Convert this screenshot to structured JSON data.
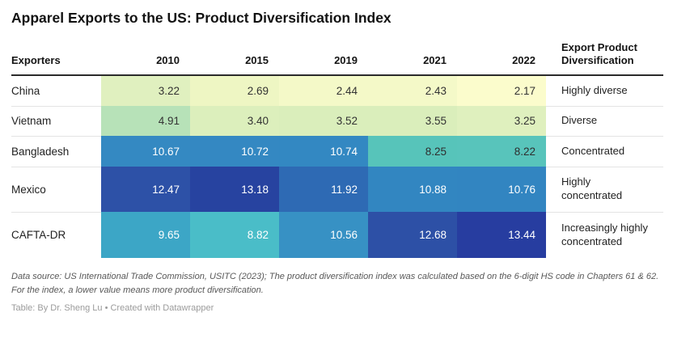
{
  "title": "Apparel Exports to the US: Product Diversification Index",
  "table": {
    "columns": [
      {
        "label": "Exporters"
      },
      {
        "label": "2010"
      },
      {
        "label": "2015"
      },
      {
        "label": "2019"
      },
      {
        "label": "2021"
      },
      {
        "label": "2022"
      },
      {
        "label": "Export Product Diversification"
      }
    ],
    "rows": [
      {
        "exporter": "China",
        "classification": "Highly diverse",
        "cells": [
          {
            "value": "3.22",
            "bg": "#e0f0bf",
            "fg": "#333333"
          },
          {
            "value": "2.69",
            "bg": "#eef6c3",
            "fg": "#333333"
          },
          {
            "value": "2.44",
            "bg": "#f4f9c8",
            "fg": "#333333"
          },
          {
            "value": "2.43",
            "bg": "#f4f9c8",
            "fg": "#333333"
          },
          {
            "value": "2.17",
            "bg": "#fbfccc",
            "fg": "#333333"
          }
        ]
      },
      {
        "exporter": "Vietnam",
        "classification": "Diverse",
        "cells": [
          {
            "value": "4.91",
            "bg": "#b7e2b8",
            "fg": "#333333"
          },
          {
            "value": "3.40",
            "bg": "#dcefbc",
            "fg": "#333333"
          },
          {
            "value": "3.52",
            "bg": "#daeebb",
            "fg": "#333333"
          },
          {
            "value": "3.55",
            "bg": "#daeebb",
            "fg": "#333333"
          },
          {
            "value": "3.25",
            "bg": "#dff0be",
            "fg": "#333333"
          }
        ]
      },
      {
        "exporter": "Bangladesh",
        "classification": "Concentrated",
        "cells": [
          {
            "value": "10.67",
            "bg": "#3489c2",
            "fg": "#ffffff"
          },
          {
            "value": "10.72",
            "bg": "#3488c2",
            "fg": "#ffffff"
          },
          {
            "value": "10.74",
            "bg": "#3388c2",
            "fg": "#ffffff"
          },
          {
            "value": "8.25",
            "bg": "#57c4ba",
            "fg": "#2e2e2e"
          },
          {
            "value": "8.22",
            "bg": "#58c4bb",
            "fg": "#2e2e2e"
          }
        ]
      },
      {
        "exporter": "Mexico",
        "classification": "Highly concentrated",
        "cells": [
          {
            "value": "12.47",
            "bg": "#2d51a7",
            "fg": "#ffffff"
          },
          {
            "value": "13.18",
            "bg": "#2743a0",
            "fg": "#ffffff"
          },
          {
            "value": "11.92",
            "bg": "#2e6ab4",
            "fg": "#ffffff"
          },
          {
            "value": "10.88",
            "bg": "#3286c1",
            "fg": "#ffffff"
          },
          {
            "value": "10.76",
            "bg": "#3285c1",
            "fg": "#ffffff"
          }
        ]
      },
      {
        "exporter": "CAFTA-DR",
        "classification": "Increasingly highly concentrated",
        "cells": [
          {
            "value": "9.65",
            "bg": "#3ca6c6",
            "fg": "#ffffff"
          },
          {
            "value": "8.82",
            "bg": "#4abdc8",
            "fg": "#ffffff"
          },
          {
            "value": "10.56",
            "bg": "#3791c4",
            "fg": "#ffffff"
          },
          {
            "value": "12.68",
            "bg": "#2d50a6",
            "fg": "#ffffff"
          },
          {
            "value": "13.44",
            "bg": "#273da0",
            "fg": "#ffffff"
          }
        ]
      }
    ]
  },
  "footer": {
    "source": "Data source: US International Trade Commission, USITC (2023); The product diversification index was calculated based on the 6-digit HS code in Chapters 61 & 62. For the index, a lower value means more product diversification.",
    "credit": "Table: By Dr. Sheng Lu • Created with Datawrapper"
  },
  "chart_data": {
    "type": "table",
    "subtype": "heatmap-table",
    "title": "Apparel Exports to the US: Product Diversification Index",
    "columns": [
      "Exporters",
      "2010",
      "2015",
      "2019",
      "2021",
      "2022",
      "Export Product Diversification"
    ],
    "rows": [
      [
        "China",
        3.22,
        2.69,
        2.44,
        2.43,
        2.17,
        "Highly diverse"
      ],
      [
        "Vietnam",
        4.91,
        3.4,
        3.52,
        3.55,
        3.25,
        "Diverse"
      ],
      [
        "Bangladesh",
        10.67,
        10.72,
        10.74,
        8.25,
        8.22,
        "Concentrated"
      ],
      [
        "Mexico",
        12.47,
        13.18,
        11.92,
        10.88,
        10.76,
        "Highly concentrated"
      ],
      [
        "CAFTA-DR",
        9.65,
        8.82,
        10.56,
        12.68,
        13.44,
        "Increasingly highly concentrated"
      ]
    ],
    "color_scale": {
      "name": "YlGnBu",
      "low_color": "#fbfccc",
      "high_color": "#273da0",
      "meaning": "lower value = yellow = more product diversification; higher value = dark blue = more concentrated",
      "domain": [
        2.17,
        13.44
      ]
    },
    "notes": "Data source: US International Trade Commission, USITC (2023); index based on 6-digit HS code in Chapters 61 & 62; a lower value means more product diversification."
  }
}
